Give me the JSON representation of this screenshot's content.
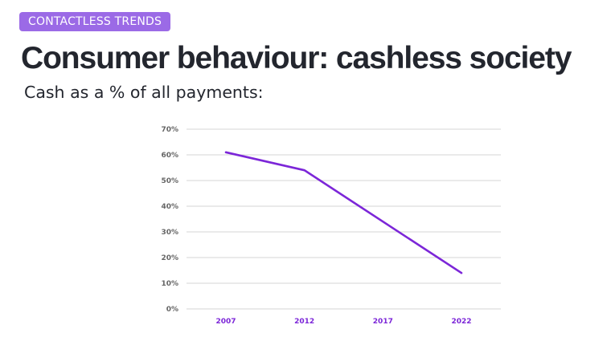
{
  "header": {
    "badge": "CONTACTLESS TRENDS",
    "title": "Consumer behaviour: cashless society",
    "subtitle": "Cash as a % of all payments:"
  },
  "colors": {
    "badge": "#9b6ae6",
    "line": "#7c26d8",
    "grid": "#d6d6d6",
    "x_tick_label": "#7c26d8"
  },
  "chart_data": {
    "type": "line",
    "categories": [
      "2007",
      "2012",
      "2017",
      "2022"
    ],
    "series": [
      {
        "values": [
          61,
          54,
          34,
          14
        ]
      }
    ],
    "ylim": [
      0,
      70
    ],
    "y_ticks": [
      "0%",
      "10%",
      "20%",
      "30%",
      "40%",
      "50%",
      "60%",
      "70%"
    ],
    "grid": true,
    "legend": "none"
  }
}
